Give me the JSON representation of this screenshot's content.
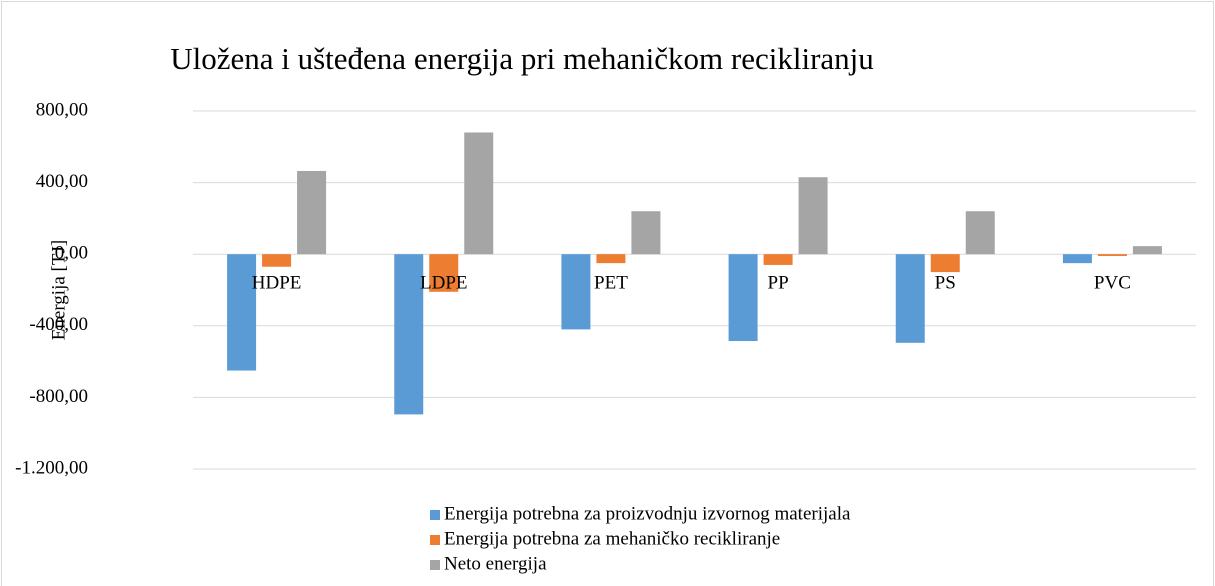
{
  "chart_data": {
    "type": "bar",
    "title": "Uložena i ušteđena energija pri mehaničkom recikliranju",
    "y_label": "Energija [TJ]",
    "categories": [
      "HDPE",
      "LDPE",
      "PET",
      "PP",
      "PS",
      "PVC"
    ],
    "series": [
      {
        "name": "Energija potrebna za proizvodnju izvornog materijala",
        "color": "#5b9bd5",
        "values": [
          -650,
          -895,
          -420,
          -485,
          -495,
          -50
        ]
      },
      {
        "name": "Energija potrebna za mehaničko recikliranje",
        "color": "#ed7d31",
        "values": [
          -70,
          -210,
          -50,
          -60,
          -100,
          -10
        ]
      },
      {
        "name": "Neto energija",
        "color": "#a5a5a5",
        "values": [
          465,
          680,
          240,
          430,
          240,
          45
        ]
      }
    ],
    "ylim": [
      -1200,
      800
    ],
    "yticks": [
      {
        "value": -1200,
        "label": "-1.200,00"
      },
      {
        "value": -800,
        "label": "-800,00"
      },
      {
        "value": -400,
        "label": "-400,00"
      },
      {
        "value": 0,
        "label": "0,00"
      },
      {
        "value": 400,
        "label": "400,00"
      },
      {
        "value": 800,
        "label": "800,00"
      }
    ],
    "grid": true,
    "legend": "bottom"
  }
}
